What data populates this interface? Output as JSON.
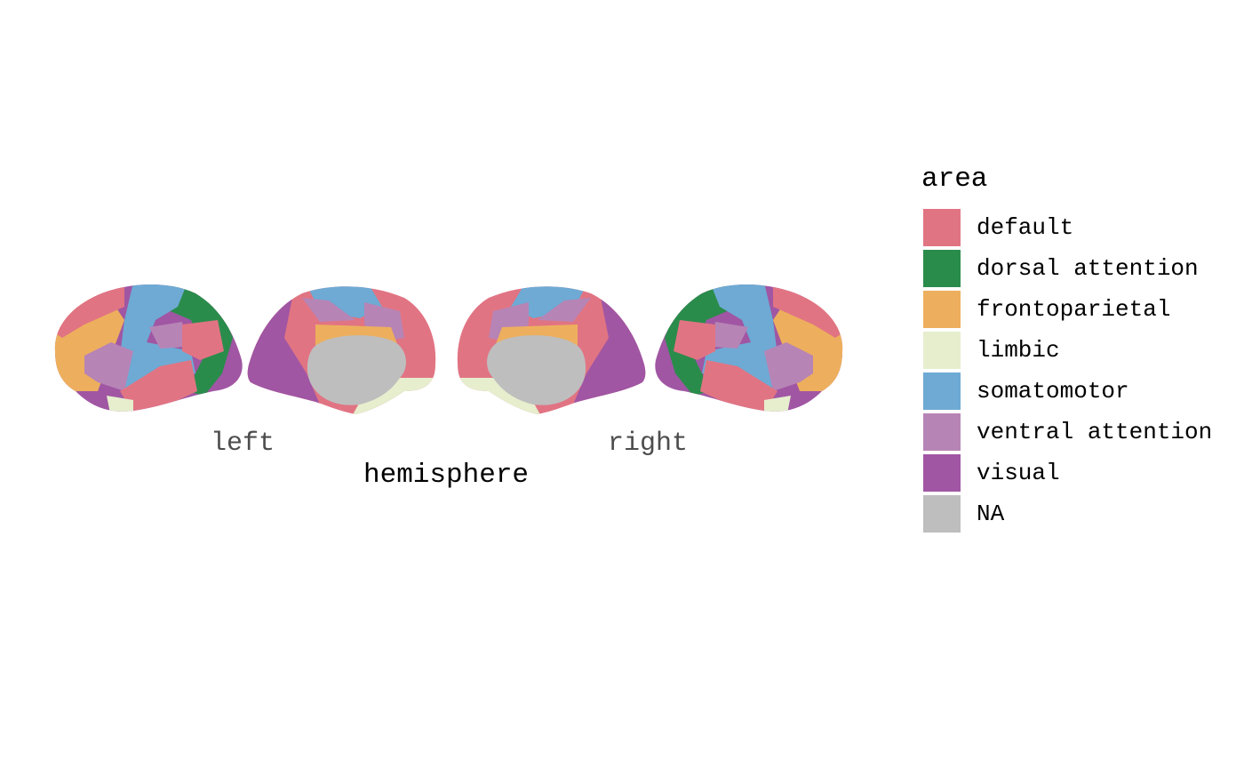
{
  "colors": {
    "default": "#E17483",
    "dorsal attention": "#2A8C4B",
    "frontoparietal": "#EDAF5D",
    "limbic": "#E6EECE",
    "somatomotor": "#6EAAD4",
    "ventral attention": "#B784B6",
    "visual": "#A056A3",
    "NA": "#BEBEBE"
  },
  "hemispheres": {
    "left": "left",
    "right": "right"
  },
  "axis": {
    "xlabel": "hemisphere"
  },
  "legend": {
    "title": "area",
    "items": [
      {
        "label": "default",
        "color": "#E17483"
      },
      {
        "label": "dorsal attention",
        "color": "#2A8C4B"
      },
      {
        "label": "frontoparietal",
        "color": "#EDAF5D"
      },
      {
        "label": "limbic",
        "color": "#E6EECE"
      },
      {
        "label": "somatomotor",
        "color": "#6EAAD4"
      },
      {
        "label": "ventral attention",
        "color": "#B784B6"
      },
      {
        "label": "visual",
        "color": "#A056A3"
      },
      {
        "label": "NA",
        "color": "#BEBEBE"
      }
    ]
  }
}
